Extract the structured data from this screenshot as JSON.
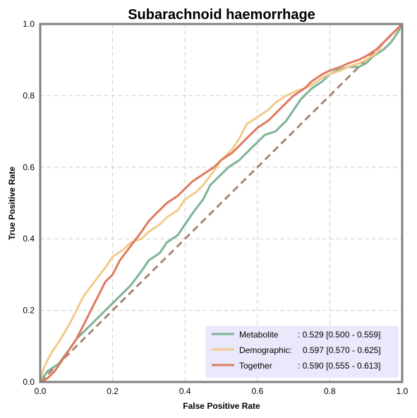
{
  "chart_data": {
    "type": "line",
    "title": "Subarachnoid haemorrhage",
    "xlabel": "False Positive Rate",
    "ylabel": "True Positive Rate",
    "xlim": [
      0,
      1
    ],
    "ylim": [
      0,
      1
    ],
    "x_ticks": [
      "0.0",
      "0.2",
      "0.4",
      "0.6",
      "0.8",
      "1.0"
    ],
    "y_ticks": [
      "0.0",
      "0.2",
      "0.4",
      "0.6",
      "0.8",
      "1.0"
    ],
    "grid": true,
    "legend_position": "bottom-right",
    "diagonal": {
      "color": "#a8877a"
    },
    "series": [
      {
        "name": "Metabolite",
        "color": "#7fb394",
        "legend_name": "Metabolite",
        "legend_value": ": 0.529 [0.500 - 0.559]",
        "x": [
          0.0,
          0.02,
          0.05,
          0.08,
          0.1,
          0.12,
          0.15,
          0.18,
          0.2,
          0.22,
          0.25,
          0.28,
          0.3,
          0.33,
          0.35,
          0.38,
          0.4,
          0.42,
          0.45,
          0.47,
          0.5,
          0.52,
          0.55,
          0.58,
          0.6,
          0.62,
          0.65,
          0.68,
          0.7,
          0.72,
          0.75,
          0.78,
          0.8,
          0.82,
          0.85,
          0.88,
          0.9,
          0.92,
          0.95,
          0.97,
          0.99,
          1.0
        ],
        "y": [
          0.0,
          0.03,
          0.05,
          0.09,
          0.12,
          0.14,
          0.17,
          0.2,
          0.22,
          0.24,
          0.27,
          0.31,
          0.34,
          0.36,
          0.39,
          0.41,
          0.44,
          0.47,
          0.51,
          0.55,
          0.58,
          0.6,
          0.62,
          0.65,
          0.67,
          0.69,
          0.7,
          0.73,
          0.76,
          0.79,
          0.82,
          0.84,
          0.86,
          0.87,
          0.88,
          0.88,
          0.89,
          0.91,
          0.93,
          0.95,
          0.98,
          1.0
        ]
      },
      {
        "name": "Demographic",
        "color": "#f2cb8c",
        "legend_name": "Demographic:",
        "legend_value": "0.597 [0.570 - 0.625]",
        "x": [
          0.0,
          0.01,
          0.03,
          0.05,
          0.08,
          0.1,
          0.12,
          0.15,
          0.18,
          0.2,
          0.23,
          0.25,
          0.28,
          0.3,
          0.33,
          0.35,
          0.38,
          0.4,
          0.43,
          0.45,
          0.48,
          0.5,
          0.53,
          0.55,
          0.57,
          0.6,
          0.63,
          0.65,
          0.68,
          0.7,
          0.73,
          0.75,
          0.78,
          0.8,
          0.83,
          0.85,
          0.88,
          0.9,
          0.93,
          0.95,
          0.98,
          1.0
        ],
        "y": [
          0.0,
          0.04,
          0.08,
          0.11,
          0.16,
          0.2,
          0.24,
          0.28,
          0.32,
          0.35,
          0.37,
          0.39,
          0.4,
          0.42,
          0.44,
          0.46,
          0.48,
          0.51,
          0.53,
          0.55,
          0.59,
          0.62,
          0.65,
          0.68,
          0.72,
          0.74,
          0.76,
          0.78,
          0.8,
          0.81,
          0.82,
          0.83,
          0.85,
          0.86,
          0.87,
          0.88,
          0.89,
          0.9,
          0.92,
          0.95,
          0.98,
          1.0
        ]
      },
      {
        "name": "Together",
        "color": "#e07a62",
        "legend_name": "Together",
        "legend_value": ": 0.590 [0.555 - 0.613]",
        "x": [
          0.0,
          0.02,
          0.04,
          0.06,
          0.08,
          0.1,
          0.12,
          0.14,
          0.16,
          0.18,
          0.2,
          0.22,
          0.25,
          0.28,
          0.3,
          0.33,
          0.35,
          0.38,
          0.4,
          0.42,
          0.45,
          0.48,
          0.5,
          0.53,
          0.55,
          0.57,
          0.6,
          0.63,
          0.65,
          0.68,
          0.7,
          0.73,
          0.75,
          0.78,
          0.8,
          0.83,
          0.85,
          0.88,
          0.9,
          0.93,
          0.95,
          0.98,
          1.0
        ],
        "y": [
          0.0,
          0.01,
          0.03,
          0.06,
          0.09,
          0.12,
          0.16,
          0.2,
          0.24,
          0.28,
          0.3,
          0.34,
          0.38,
          0.42,
          0.45,
          0.48,
          0.5,
          0.52,
          0.54,
          0.56,
          0.58,
          0.6,
          0.62,
          0.64,
          0.66,
          0.68,
          0.71,
          0.73,
          0.75,
          0.78,
          0.8,
          0.82,
          0.84,
          0.86,
          0.87,
          0.88,
          0.89,
          0.9,
          0.91,
          0.93,
          0.95,
          0.98,
          1.0
        ]
      }
    ]
  }
}
